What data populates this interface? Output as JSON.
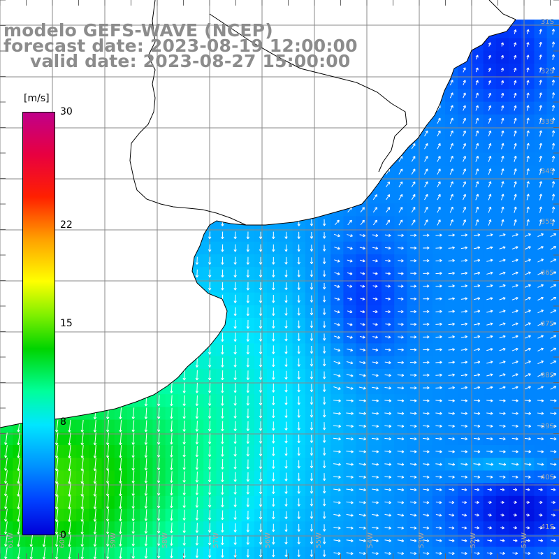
{
  "titles": {
    "model": "modelo GEFS-WAVE (NCEP)",
    "forecast": "forecast date: 2023-08-19 12:00:00",
    "valid": "valid date: 2023-08-27 15:00:00"
  },
  "colorbar": {
    "unit": "[m/s]",
    "ticks": [
      {
        "value": "30",
        "level": 30
      },
      {
        "value": "22",
        "level": 22
      },
      {
        "value": "15",
        "level": 15
      },
      {
        "value": "8",
        "level": 8
      },
      {
        "value": "0",
        "level": 0
      }
    ],
    "min": 0,
    "max": 30
  },
  "map": {
    "lat_labels": [
      "31S",
      "32S",
      "33S",
      "34S",
      "35S",
      "36S",
      "37S",
      "38S",
      "39S",
      "40S",
      "41S"
    ],
    "lon_labels": [
      "61W",
      "60W",
      "59W",
      "58W",
      "57W",
      "56W",
      "55W",
      "54W",
      "53W",
      "52W",
      "51W"
    ],
    "land_color": "#ffffff",
    "grid_color": "#888888",
    "arrow_color": "#ffffff"
  }
}
